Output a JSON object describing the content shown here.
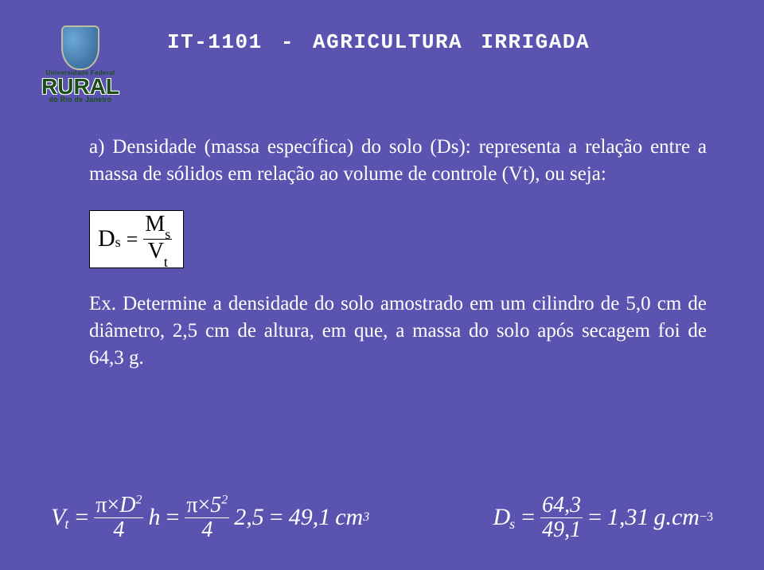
{
  "colors": {
    "background": "#5b53b0",
    "text": "#ffffff",
    "logo_green": "#1a4d1a",
    "formula_box_bg": "#ffffff",
    "formula_box_text": "#000000"
  },
  "typography": {
    "title_font": "Courier New",
    "title_size_pt": 20,
    "body_font": "Comic Sans MS",
    "body_size_pt": 19,
    "math_font": "Times New Roman",
    "math_size_pt": 22
  },
  "logo": {
    "line1": "Universidade Federal",
    "main": "RURAL",
    "line3": "do Rio de Janeiro"
  },
  "title": "IT-1101  -  AGRICULTURA IRRIGADA",
  "para1": "a) Densidade (massa específica) do solo (Ds): representa a relação entre a massa de sólidos em relação ao volume de controle (Vt), ou seja:",
  "formula_box": {
    "lhs_var": "D",
    "lhs_sub": "s",
    "num_var": "M",
    "num_sub": "s",
    "den_var": "V",
    "den_sub": "t"
  },
  "para2": "Ex. Determine a densidade do solo amostrado em um cilindro de 5,0 cm de diâmetro, 2,5 cm de altura, em que, a massa do solo após secagem foi de 64,3 g.",
  "eq_left": {
    "V": "V",
    "t": "t",
    "pi": "π",
    "times": "×",
    "D": "D",
    "sq": "2",
    "four": "4",
    "h": "h",
    "five": "5",
    "val1": "2,5",
    "result": "49,1",
    "unit": "cm",
    "exp": "3"
  },
  "eq_right": {
    "D": "D",
    "s": "s",
    "num": "64,3",
    "den": "49,1",
    "val": "1,31",
    "unit": "g.cm",
    "exp": "−3"
  }
}
